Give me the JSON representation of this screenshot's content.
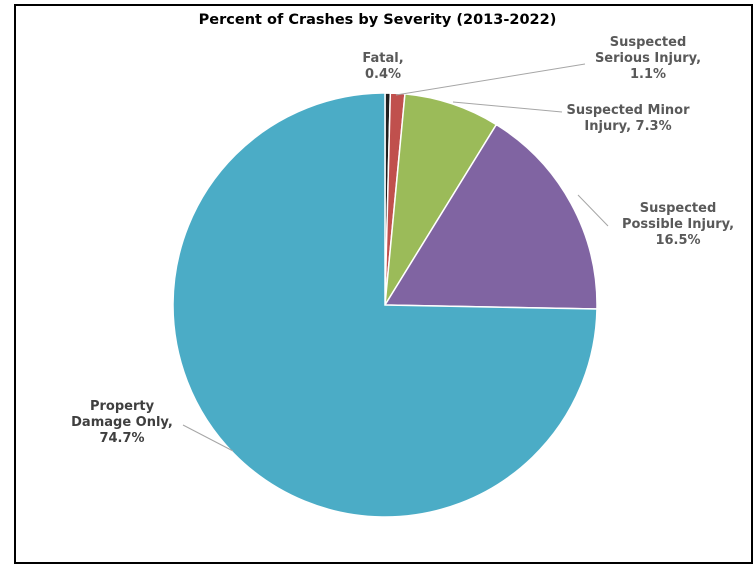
{
  "chart_data": {
    "type": "pie",
    "title": "Percent of Crashes by Severity (2013-2022)",
    "slices": [
      {
        "name": "Fatal",
        "value": 0.4,
        "label": [
          "Fatal,",
          "0.4%"
        ],
        "color": "#1f1f1f"
      },
      {
        "name": "Suspected Serious Injury",
        "value": 1.1,
        "label": [
          "Suspected",
          "Serious Injury,",
          "1.1%"
        ],
        "color": "#c0504d"
      },
      {
        "name": "Suspected Minor Injury",
        "value": 7.3,
        "label": [
          "Suspected Minor",
          "Injury, 7.3%"
        ],
        "color": "#9bbb59"
      },
      {
        "name": "Suspected Possible Injury",
        "value": 16.5,
        "label": [
          "Suspected",
          "Possible Injury,",
          "16.5%"
        ],
        "color": "#8064a2"
      },
      {
        "name": "Property Damage Only",
        "value": 74.7,
        "label": [
          "Property",
          "Damage Only,",
          "74.7%"
        ],
        "color": "#4bacc6"
      }
    ]
  }
}
